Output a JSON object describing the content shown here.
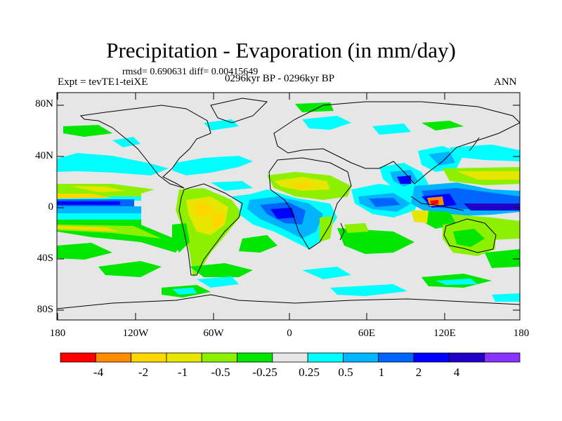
{
  "title": "Precipitation - Evaporation (in mm/day)",
  "stats": "rmsd= 0.690631 diff= 0.00415649",
  "experiment": "Expt = tevTE1-teiXE",
  "period": "0296kyr BP - 0296kyr BP",
  "season": "ANN",
  "y_axis": {
    "ticks": [
      "80N",
      "40N",
      "0",
      "40S",
      "80S"
    ],
    "values": [
      80,
      40,
      0,
      -40,
      -80
    ]
  },
  "x_axis": {
    "ticks": [
      "180",
      "120W",
      "60W",
      "0",
      "60E",
      "120E",
      "180"
    ],
    "values": [
      -180,
      -120,
      -60,
      0,
      60,
      120,
      180
    ]
  },
  "colorbar": {
    "labels": [
      "-4",
      "-2",
      "-1",
      "-0.5",
      "-0.25",
      "0.25",
      "0.5",
      "1",
      "2",
      "4"
    ],
    "colors": [
      "#ff0000",
      "#ff8c00",
      "#ffd700",
      "#e6e600",
      "#8cf000",
      "#00e600",
      "#e6e6e6",
      "#00ffff",
      "#00b4ff",
      "#0064ff",
      "#0000ff",
      "#2200cc",
      "#8833ff"
    ]
  },
  "background_color": "#e6e6e6"
}
